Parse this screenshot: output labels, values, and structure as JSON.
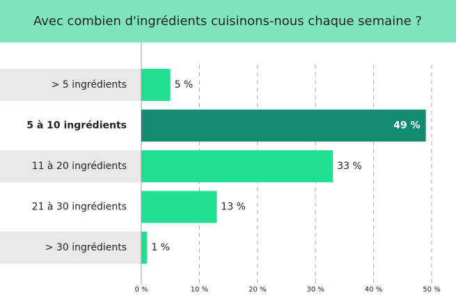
{
  "chart_data": {
    "type": "hbar",
    "title": "Avec combien d'ingrédients cuisinons-nous chaque semaine ?",
    "categories": [
      "> 5 ingrédients",
      "5 à 10 ingrédients",
      "11 à 20 ingrédients",
      "21 à 30 ingrédients",
      "> 30 ingrédients"
    ],
    "values": [
      5,
      49,
      33,
      13,
      1
    ],
    "value_labels": [
      "5 %",
      "49 %",
      "33 %",
      "13 %",
      "1 %"
    ],
    "colors": [
      "#21e08f",
      "#138a72",
      "#21e08f",
      "#21e08f",
      "#21e08f"
    ],
    "highlight": 1,
    "xlim": [
      0,
      50
    ],
    "xticks": [
      {
        "value": 0,
        "label": "0 %"
      },
      {
        "value": 10,
        "label": "10 %"
      },
      {
        "value": 20,
        "label": "20 %"
      },
      {
        "value": 30,
        "label": "30 %"
      },
      {
        "value": 40,
        "label": "40 %"
      },
      {
        "value": 50,
        "label": "50 %"
      }
    ],
    "grid": true
  }
}
